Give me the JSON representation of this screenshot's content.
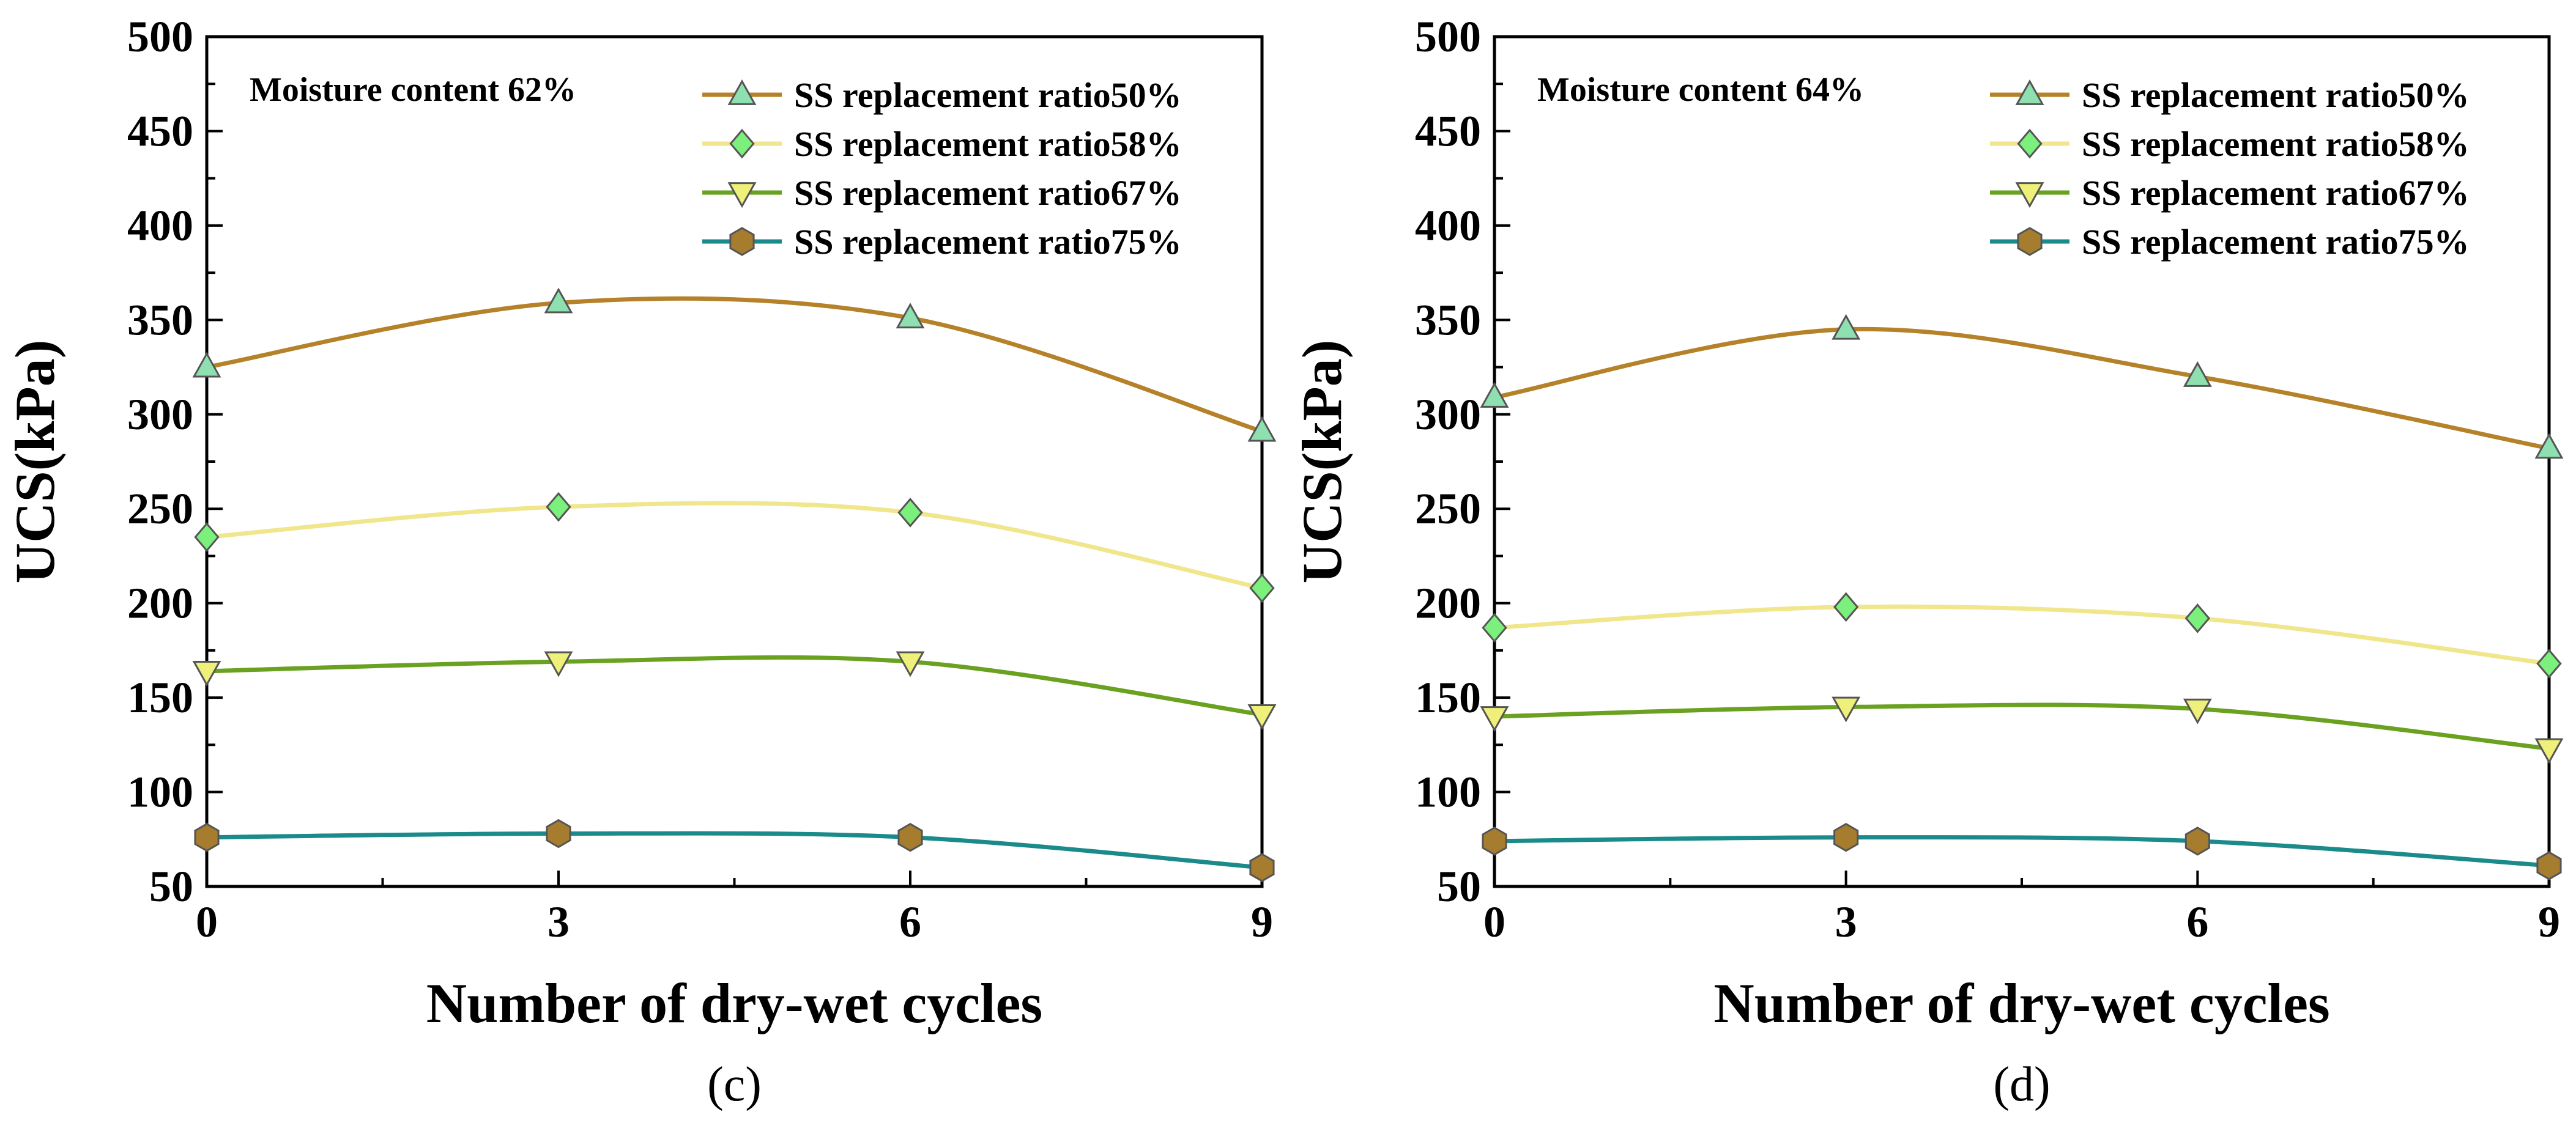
{
  "chart_data": [
    {
      "type": "line",
      "panel_label": "(c)",
      "annotation": "Moisture content 62%",
      "xlabel": "Number of dry-wet cycles",
      "ylabel": "UCS(kPa)",
      "x": [
        0,
        3,
        6,
        9
      ],
      "xticks": [
        0,
        3,
        6,
        9
      ],
      "xtick_labels": [
        "0",
        "3",
        "6",
        "9"
      ],
      "xlim": [
        0,
        9
      ],
      "ylim": [
        50,
        500
      ],
      "yticks": [
        50,
        100,
        150,
        200,
        250,
        300,
        350,
        400,
        450,
        500
      ],
      "ytick_labels": [
        "50",
        "100",
        "150",
        "200",
        "250",
        "300",
        "350",
        "400",
        "450",
        "500"
      ],
      "legend_position": "top-right",
      "series": [
        {
          "name": "SS replacement ratio50%",
          "values": [
            325,
            359,
            351,
            291
          ],
          "line_color": "#b5822a",
          "marker": "triangle-up",
          "marker_fill": "#8fe0b0"
        },
        {
          "name": "SS replacement ratio58%",
          "values": [
            235,
            251,
            248,
            208
          ],
          "line_color": "#f0e68c",
          "marker": "diamond",
          "marker_fill": "#7cf07c"
        },
        {
          "name": "SS replacement ratio67%",
          "values": [
            164,
            169,
            169,
            141
          ],
          "line_color": "#6aa121",
          "marker": "triangle-down",
          "marker_fill": "#eef07a"
        },
        {
          "name": "SS replacement ratio75%",
          "values": [
            76,
            78,
            76,
            60
          ],
          "line_color": "#1b8a8a",
          "marker": "hexagon",
          "marker_fill": "#a67c2e"
        }
      ]
    },
    {
      "type": "line",
      "panel_label": "(d)",
      "annotation": "Moisture content 64%",
      "xlabel": "Number of dry-wet cycles",
      "ylabel": "UCS(kPa)",
      "x": [
        0,
        3,
        6,
        9
      ],
      "xticks": [
        0,
        3,
        6,
        9
      ],
      "xtick_labels": [
        "0",
        "3",
        "6",
        "9"
      ],
      "xlim": [
        0,
        9
      ],
      "ylim": [
        50,
        500
      ],
      "yticks": [
        50,
        100,
        150,
        200,
        250,
        300,
        350,
        400,
        450,
        500
      ],
      "ytick_labels": [
        "50",
        "100",
        "150",
        "200",
        "250",
        "300",
        "350",
        "400",
        "450",
        "500"
      ],
      "legend_position": "top-right",
      "series": [
        {
          "name": "SS replacement ratio50%",
          "values": [
            309,
            345,
            320,
            282
          ],
          "line_color": "#b5822a",
          "marker": "triangle-up",
          "marker_fill": "#8fe0b0"
        },
        {
          "name": "SS replacement ratio58%",
          "values": [
            187,
            198,
            192,
            168
          ],
          "line_color": "#f0e68c",
          "marker": "diamond",
          "marker_fill": "#7cf07c"
        },
        {
          "name": "SS replacement ratio67%",
          "values": [
            140,
            145,
            144,
            123
          ],
          "line_color": "#6aa121",
          "marker": "triangle-down",
          "marker_fill": "#eef07a"
        },
        {
          "name": "SS replacement ratio75%",
          "values": [
            74,
            76,
            74,
            61
          ],
          "line_color": "#1b8a8a",
          "marker": "hexagon",
          "marker_fill": "#a67c2e"
        }
      ]
    }
  ]
}
